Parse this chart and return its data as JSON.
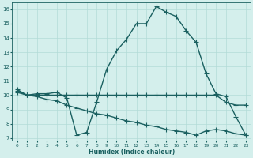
{
  "line1_x": [
    0,
    1,
    2,
    3,
    4,
    5,
    6,
    7,
    8,
    9,
    10,
    11,
    12,
    13,
    14,
    15,
    16,
    17,
    18,
    19,
    20,
    21,
    22,
    23
  ],
  "line1_y": [
    10.4,
    10.0,
    10.1,
    10.1,
    10.2,
    9.8,
    7.2,
    7.4,
    9.5,
    11.8,
    13.1,
    13.9,
    15.0,
    15.0,
    16.2,
    15.8,
    15.5,
    14.5,
    13.7,
    11.5,
    10.1,
    9.9,
    8.5,
    7.2
  ],
  "line2_x": [
    0,
    1,
    2,
    3,
    4,
    5,
    6,
    7,
    8,
    9,
    10,
    11,
    12,
    13,
    14,
    15,
    16,
    17,
    18,
    19,
    20,
    21,
    22,
    23
  ],
  "line2_y": [
    10.3,
    10.0,
    10.0,
    10.0,
    10.0,
    10.0,
    10.0,
    10.0,
    10.0,
    10.0,
    10.0,
    10.0,
    10.0,
    10.0,
    10.0,
    10.0,
    10.0,
    10.0,
    10.0,
    10.0,
    10.0,
    9.5,
    9.3,
    9.3
  ],
  "line3_x": [
    0,
    1,
    2,
    3,
    4,
    5,
    6,
    7,
    8,
    9,
    10,
    11,
    12,
    13,
    14,
    15,
    16,
    17,
    18,
    19,
    20,
    21,
    22,
    23
  ],
  "line3_y": [
    10.2,
    10.0,
    9.9,
    9.7,
    9.6,
    9.3,
    9.1,
    8.9,
    8.7,
    8.6,
    8.4,
    8.2,
    8.1,
    7.9,
    7.8,
    7.6,
    7.5,
    7.4,
    7.2,
    7.5,
    7.6,
    7.5,
    7.3,
    7.2
  ],
  "line_color": "#1a6060",
  "bg_color": "#d4efec",
  "grid_color": "#b2dbd7",
  "xlabel": "Humidex (Indice chaleur)",
  "xlim": [
    -0.5,
    23.5
  ],
  "ylim": [
    6.8,
    16.5
  ],
  "yticks": [
    7,
    8,
    9,
    10,
    11,
    12,
    13,
    14,
    15,
    16
  ],
  "xticks": [
    0,
    1,
    2,
    3,
    4,
    5,
    6,
    7,
    8,
    9,
    10,
    11,
    12,
    13,
    14,
    15,
    16,
    17,
    18,
    19,
    20,
    21,
    22,
    23
  ],
  "marker": "+",
  "markersize": 4,
  "linewidth": 1.0
}
